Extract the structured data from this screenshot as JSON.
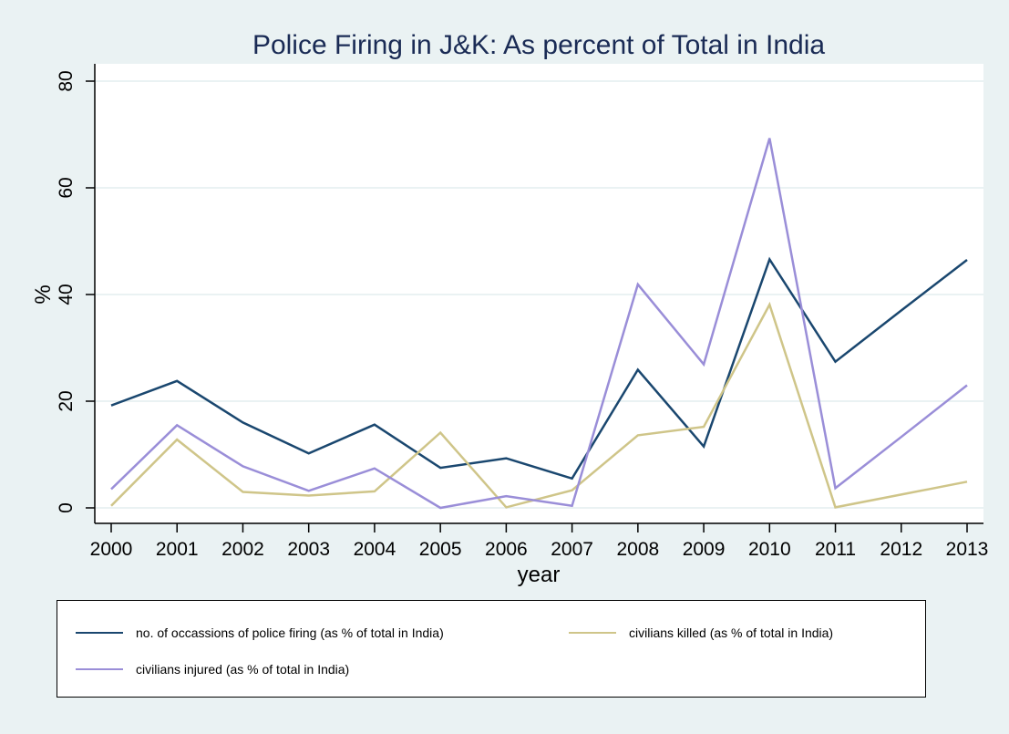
{
  "chart_data": {
    "type": "line",
    "title": "Police Firing in J&K: As percent of Total in India",
    "xlabel": "year",
    "ylabel": "%",
    "x": [
      2000,
      2001,
      2002,
      2003,
      2004,
      2005,
      2006,
      2007,
      2008,
      2009,
      2010,
      2011,
      2012,
      2013
    ],
    "xticks": [
      "2000",
      "2001",
      "2002",
      "2003",
      "2004",
      "2005",
      "2006",
      "2007",
      "2008",
      "2009",
      "2010",
      "2011",
      "2012",
      "2013"
    ],
    "yticks": [
      "0",
      "20",
      "40",
      "60",
      "80"
    ],
    "ytick_values": [
      0,
      20,
      40,
      60,
      80
    ],
    "ylim": [
      -2,
      83
    ],
    "xlim": [
      1999.75,
      2013.2
    ],
    "grid": true,
    "legend_position": "bottom",
    "series": [
      {
        "name": "no. of occassions of police firing (as % of total in India)",
        "color": "#1a476f",
        "values": [
          19.2,
          23.8,
          16.0,
          10.2,
          15.6,
          7.5,
          9.3,
          5.5,
          25.9,
          11.5,
          46.6,
          27.4,
          37.0,
          46.5
        ]
      },
      {
        "name": "civilians killed (as % of total in India)",
        "color": "#cfc589",
        "values": [
          0.4,
          12.8,
          3.0,
          2.3,
          3.1,
          14.1,
          0.1,
          3.3,
          13.6,
          15.2,
          38.1,
          0.1,
          2.5,
          4.9
        ]
      },
      {
        "name": "civilians injured (as % of total in India)",
        "color": "#9a8ed8",
        "values": [
          3.5,
          15.5,
          7.8,
          3.2,
          7.4,
          0.0,
          2.2,
          0.4,
          41.9,
          26.9,
          69.3,
          3.7,
          13.3,
          23.0
        ]
      }
    ]
  },
  "colors": {
    "background": "#eaf2f3",
    "plot_background": "#ffffff",
    "gridline": "#eaf2f3",
    "title": "#1a2b55"
  }
}
